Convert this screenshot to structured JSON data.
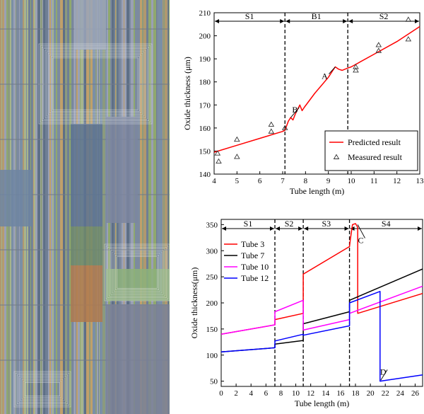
{
  "figure": {
    "left_panel": {
      "description_colors": [
        "#8b9a7e",
        "#7a8fa6",
        "#a7b58c",
        "#6f7f95",
        "#9aa0b5",
        "#b0986f",
        "#5e6f86",
        "#8fa86e",
        "#c0a06a",
        "#7c8aa0"
      ],
      "main_block_colors": [
        "#5d7391",
        "#7c86a0",
        "#6e8a6a",
        "#b07a4e",
        "#8db27a",
        "#7b8197"
      ]
    }
  },
  "chart_data": [
    {
      "type": "line",
      "xlabel": "Tube length (m)",
      "ylabel": "Oxide thickness (μm)",
      "xlim": [
        4,
        13
      ],
      "ylim": [
        140,
        210
      ],
      "xticks": [
        "4",
        "5",
        "6",
        "7",
        "8",
        "9",
        "10",
        "11",
        "12",
        "13"
      ],
      "yticks": [
        "140",
        "150",
        "160",
        "170",
        "180",
        "190",
        "200",
        "210"
      ],
      "sections": [
        {
          "label": "S1",
          "from": 4,
          "to": 7.1
        },
        {
          "label": "B1",
          "from": 7.1,
          "to": 9.85
        },
        {
          "label": "S2",
          "from": 9.85,
          "to": 13
        }
      ],
      "boundaries": [
        7.1,
        9.85
      ],
      "series": [
        {
          "name": "Predicted result",
          "color": "#ff0000",
          "x": [
            4.0,
            5.0,
            6.0,
            7.0,
            7.1,
            7.25,
            7.35,
            7.45,
            7.55,
            7.65,
            7.75,
            7.85,
            7.95,
            8.1,
            8.4,
            8.7,
            9.0,
            9.2,
            9.3,
            9.45,
            9.6,
            9.85,
            10.0,
            11.0,
            12.0,
            13.0
          ],
          "y": [
            149.5,
            152.5,
            155.5,
            158.5,
            159.0,
            163.0,
            164.5,
            163.5,
            166.0,
            168.0,
            170.0,
            167.5,
            169.0,
            171.0,
            175.0,
            178.5,
            182.0,
            185.0,
            186.5,
            185.5,
            185.0,
            186.0,
            186.5,
            192.0,
            197.5,
            204.0
          ]
        },
        {
          "name": "Measured result",
          "marker": "triangle",
          "x": [
            4.15,
            4.2,
            5.0,
            5.0,
            6.5,
            6.5,
            7.1,
            10.2,
            10.2,
            11.2,
            11.2,
            12.5,
            12.5
          ],
          "y": [
            149.0,
            145.5,
            155.0,
            147.5,
            161.5,
            158.5,
            160.0,
            186.5,
            185.0,
            196.0,
            193.5,
            207.0,
            198.5
          ]
        }
      ],
      "annotations": [
        {
          "label": "A",
          "x": 9.3,
          "y": 186.5,
          "text_x": 8.9,
          "text_y": 182.5
        },
        {
          "label": "B",
          "x": 7.35,
          "y": 164.5,
          "text_x": 7.6,
          "text_y": 168.0
        }
      ],
      "legend": {
        "placement": "bottom-right"
      }
    },
    {
      "type": "line",
      "xlabel": "Tube length (m)",
      "ylabel": "Oxide thickness(μm)",
      "xlim": [
        0,
        27
      ],
      "ylim": [
        40,
        360
      ],
      "xticks": [
        "0",
        "2",
        "4",
        "6",
        "8",
        "10",
        "12",
        "14",
        "16",
        "18",
        "20",
        "22",
        "24",
        "26"
      ],
      "yticks": [
        "50",
        "100",
        "150",
        "200",
        "250",
        "300",
        "350"
      ],
      "sections": [
        {
          "label": "S1",
          "from": 0,
          "to": 7.2
        },
        {
          "label": "S2",
          "from": 7.2,
          "to": 11.0
        },
        {
          "label": "S3",
          "from": 11.0,
          "to": 17.2
        },
        {
          "label": "S4",
          "from": 17.2,
          "to": 27
        }
      ],
      "boundaries": [
        7.2,
        11.0,
        17.2
      ],
      "series": [
        {
          "name": "Tube 3",
          "color": "#ff0000",
          "x": [
            0,
            7.2,
            7.2,
            11.0,
            11.0,
            17.2,
            17.3,
            17.6,
            18.0,
            18.3,
            18.3,
            27
          ],
          "y": [
            140,
            158,
            168,
            180,
            255,
            308,
            320,
            350,
            352,
            345,
            180,
            218
          ]
        },
        {
          "name": "Tube 7",
          "color": "#000000",
          "x": [
            0,
            7.2,
            7.2,
            11.0,
            11.0,
            17.2,
            17.2,
            27
          ],
          "y": [
            106,
            114,
            121,
            128,
            160,
            183,
            205,
            265
          ]
        },
        {
          "name": "Tube 10",
          "color": "#ff00ff",
          "x": [
            0,
            7.2,
            7.2,
            11.0,
            11.0,
            17.2,
            17.2,
            27
          ],
          "y": [
            140,
            158,
            183,
            205,
            148,
            168,
            180,
            232
          ]
        },
        {
          "name": "Tube 12",
          "color": "#0000ff",
          "x": [
            0,
            7.2,
            7.2,
            11.0,
            11.0,
            17.2,
            17.2,
            21.3,
            21.3,
            27
          ],
          "y": [
            106,
            114,
            127,
            140,
            138,
            156,
            200,
            222,
            50,
            62
          ]
        }
      ],
      "annotations": [
        {
          "label": "C",
          "x": 18.3,
          "y": 350,
          "text_x": 18.9,
          "text_y": 320
        },
        {
          "label": "D",
          "x": 21.4,
          "y": 52,
          "text_x": 21.9,
          "text_y": 68
        }
      ],
      "legend": {
        "placement": "top-left"
      }
    }
  ]
}
